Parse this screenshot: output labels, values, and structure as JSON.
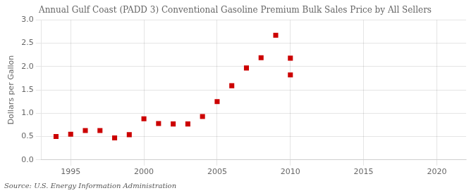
{
  "chart_data": {
    "type": "scatter",
    "title": "Annual Gulf Coast (PADD 3) Conventional Gasoline Premium Bulk Sales Price by All Sellers",
    "ylabel": "Dollars per Gallon",
    "source": "Source: U.S. Energy Information Administration",
    "x": [
      1994,
      1995,
      1996,
      1997,
      1998,
      1999,
      2000,
      2001,
      2002,
      2003,
      2004,
      2005,
      2006,
      2007,
      2008,
      2009,
      2010,
      2010
    ],
    "values": [
      0.5,
      0.55,
      0.63,
      0.63,
      0.47,
      0.54,
      0.88,
      0.78,
      0.77,
      0.77,
      0.93,
      1.25,
      1.59,
      1.97,
      2.19,
      2.67,
      1.82,
      2.18
    ],
    "color": "#cc0000",
    "marker": "square",
    "xlim": [
      1993,
      2022
    ],
    "xticks": [
      1995,
      2000,
      2005,
      2010,
      2015,
      2020
    ],
    "ylim": [
      0.0,
      3.0
    ],
    "yticks": [
      {
        "value": 0,
        "label": "0.0"
      },
      0.5,
      {
        "value": 1,
        "label": "1.0"
      },
      1.5,
      {
        "value": 2,
        "label": "2.0"
      },
      2.5,
      {
        "value": 3,
        "label": "3.0"
      }
    ],
    "grid": true
  }
}
